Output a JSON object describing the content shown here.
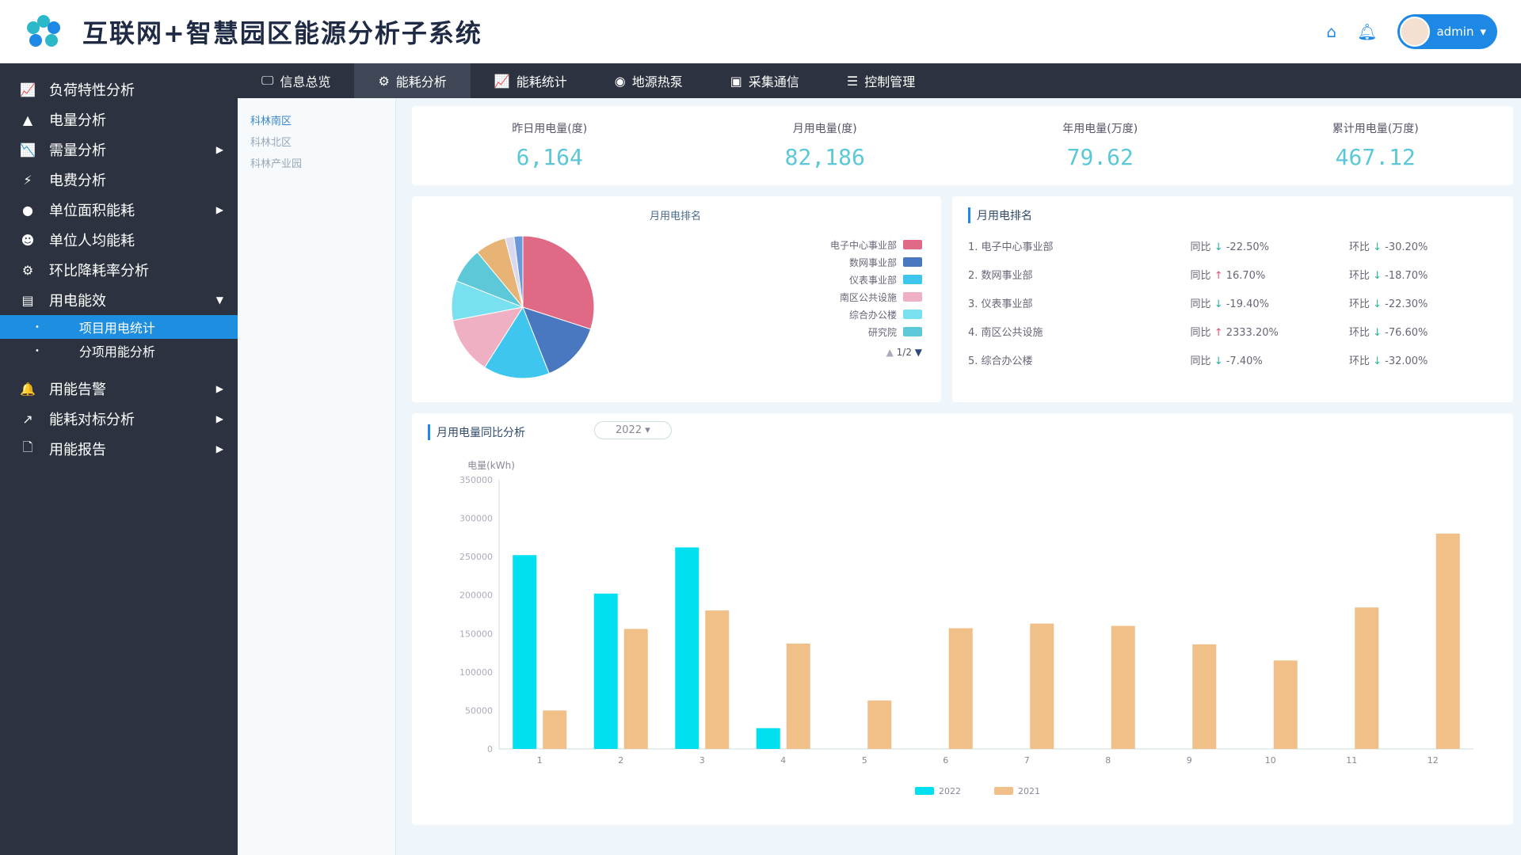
{
  "header": {
    "title": "互联网+智慧园区能源分析子系统",
    "user": "admin",
    "icons": [
      "home-icon",
      "bell-icon"
    ]
  },
  "sidebar": {
    "items": [
      {
        "label": "负荷特性分析",
        "icon": "📈"
      },
      {
        "label": "电量分析",
        "icon": "▲"
      },
      {
        "label": "需量分析",
        "icon": "📉",
        "arrow": true
      },
      {
        "label": "电费分析",
        "icon": "⚡"
      },
      {
        "label": "单位面积能耗",
        "icon": "●",
        "arrow": true
      },
      {
        "label": "单位人均能耗",
        "icon": "☻"
      },
      {
        "label": "环比降耗率分析",
        "icon": "⚙"
      },
      {
        "label": "用电能效",
        "icon": "▤",
        "open": true
      }
    ],
    "subitems": [
      {
        "label": "项目用电统计",
        "active": true
      },
      {
        "label": "分项用能分析"
      }
    ],
    "items2": [
      {
        "label": "用能告警",
        "icon": "🔔"
      },
      {
        "label": "能耗对标分析",
        "icon": "↗"
      },
      {
        "label": "用能报告",
        "icon": "🗋"
      }
    ]
  },
  "nav": {
    "tabs": [
      {
        "label": "信息总览",
        "icon": "🖵"
      },
      {
        "label": "能耗分析",
        "icon": "⚙",
        "active": true
      },
      {
        "label": "能耗统计",
        "icon": "📈"
      },
      {
        "label": "地源热泵",
        "icon": "◉"
      },
      {
        "label": "采集通信",
        "icon": "▣"
      },
      {
        "label": "控制管理",
        "icon": "☰"
      }
    ]
  },
  "tree": [
    "科林南区",
    "科林北区",
    "科林产业园"
  ],
  "kpis": [
    {
      "label": "昨日用电量(度)",
      "value": "6,164"
    },
    {
      "label": "月用电量(度)",
      "value": "82,186"
    },
    {
      "label": "年用电量(万度)",
      "value": "79.62"
    },
    {
      "label": "累计用电量(万度)",
      "value": "467.12"
    }
  ],
  "pie": {
    "title": "月用电排名",
    "pager": "1/2",
    "slices": [
      {
        "name": "电子中心事业部",
        "value": 30,
        "color": "#e06a86"
      },
      {
        "name": "数网事业部",
        "value": 14,
        "color": "#4a78c0"
      },
      {
        "name": "仪表事业部",
        "value": 15,
        "color": "#3fc6ee"
      },
      {
        "name": "南区公共设施",
        "value": 13,
        "color": "#eeb0c2"
      },
      {
        "name": "综合办公楼",
        "value": 9,
        "color": "#78e0ee"
      },
      {
        "name": "研究院",
        "value": 8,
        "color": "#5cc8d8"
      },
      {
        "name": "",
        "value": 7,
        "color": "#e8b476"
      },
      {
        "name": "",
        "value": 2,
        "color": "#d8d8ee"
      },
      {
        "name": "",
        "value": 2,
        "color": "#6a98d8"
      }
    ]
  },
  "ranking": {
    "title": "月用电排名",
    "yoy_label": "同比",
    "mom_label": "环比",
    "rows": [
      {
        "name": "1. 电子中心事业部",
        "yoy": "-22.50%",
        "yoy_dir": "down",
        "mom": "-30.20%",
        "mom_dir": "down"
      },
      {
        "name": "2. 数网事业部",
        "yoy": "16.70%",
        "yoy_dir": "up",
        "mom": "-18.70%",
        "mom_dir": "down"
      },
      {
        "name": "3. 仪表事业部",
        "yoy": "-19.40%",
        "yoy_dir": "down",
        "mom": "-22.30%",
        "mom_dir": "down"
      },
      {
        "name": "4. 南区公共设施",
        "yoy": "2333.20%",
        "yoy_dir": "up",
        "mom": "-76.60%",
        "mom_dir": "down"
      },
      {
        "name": "5. 综合办公楼",
        "yoy": "-7.40%",
        "yoy_dir": "down",
        "mom": "-32.00%",
        "mom_dir": "down"
      }
    ]
  },
  "chart_data": {
    "type": "bar",
    "title": "月用电量同比分析",
    "year_select": "2022",
    "ylabel": "电量(kWh)",
    "ylim": [
      0,
      350000
    ],
    "yticks": [
      0,
      50000,
      100000,
      150000,
      200000,
      250000,
      300000,
      350000
    ],
    "categories": [
      "1",
      "2",
      "3",
      "4",
      "5",
      "6",
      "7",
      "8",
      "9",
      "10",
      "11",
      "12"
    ],
    "legend_position": "bottom",
    "series": [
      {
        "name": "2022",
        "color": "#00e0f0",
        "values": [
          252000,
          202000,
          262000,
          27000,
          null,
          null,
          null,
          null,
          null,
          null,
          null,
          null
        ]
      },
      {
        "name": "2021",
        "color": "#f0c088",
        "values": [
          50000,
          156000,
          180000,
          137000,
          63000,
          157000,
          163000,
          160000,
          136000,
          115000,
          184000,
          280000
        ]
      }
    ]
  }
}
